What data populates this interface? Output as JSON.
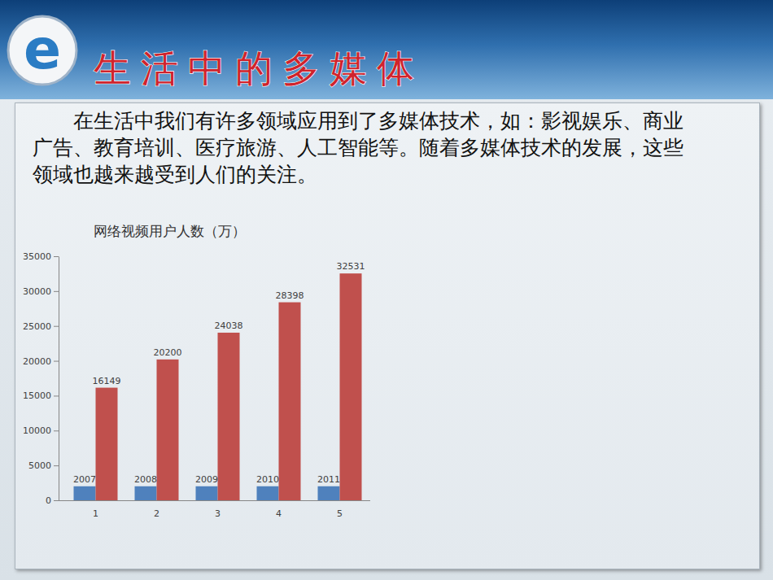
{
  "logo": {
    "text": "e"
  },
  "header": {
    "title": "生活中的多媒体"
  },
  "body": {
    "text": "在生活中我们有许多领域应用到了多媒体技术，如：影视娱乐、商业广告、教育培训、医疗旅游、人工智能等。随着多媒体技术的发展，这些领域也越来越受到人们的关注。"
  },
  "chart_data": {
    "type": "bar",
    "title": "网络视频用户人数（万）",
    "categories": [
      "1",
      "2",
      "3",
      "4",
      "5"
    ],
    "series": [
      {
        "color": "#4f81bd",
        "values": [
          2007,
          2008,
          2009,
          2010,
          2011
        ]
      },
      {
        "color": "#c0504d",
        "values": [
          16149,
          20200,
          24038,
          28398,
          32531
        ]
      }
    ],
    "ylim": [
      0,
      35000
    ],
    "yticks": [
      0,
      5000,
      10000,
      15000,
      20000,
      25000,
      30000,
      35000
    ],
    "data_labels": true,
    "grid": false
  }
}
